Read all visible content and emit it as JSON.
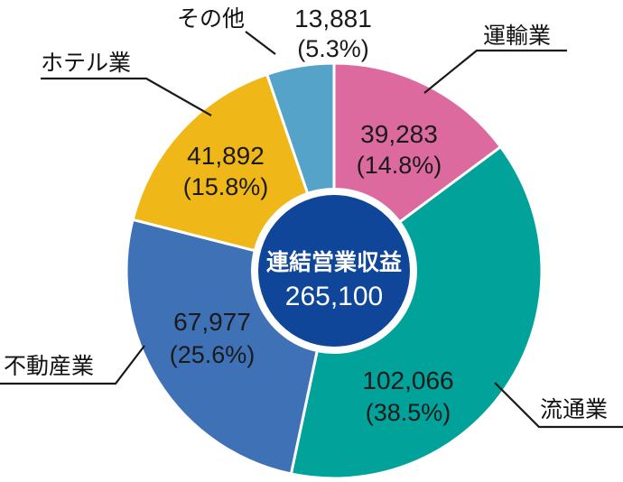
{
  "chart_data": {
    "type": "pie",
    "donut": true,
    "center": {
      "title": "連結営業収益",
      "value": "265,100"
    },
    "slices": [
      {
        "label": "運輸業",
        "value": 39283,
        "value_text": "39,283",
        "percent_text": "(14.8%)",
        "color": "#DD6A9F"
      },
      {
        "label": "流通業",
        "value": 102066,
        "value_text": "102,066",
        "percent_text": "(38.5%)",
        "color": "#00A29A"
      },
      {
        "label": "不動産業",
        "value": 67977,
        "value_text": "67,977",
        "percent_text": "(25.6%)",
        "color": "#3F71B6"
      },
      {
        "label": "ホテル業",
        "value": 41892,
        "value_text": "41,892",
        "percent_text": "(15.8%)",
        "color": "#EFB718"
      },
      {
        "label": "その他",
        "value": 13881,
        "value_text": "13,881",
        "percent_text": "(5.3%)",
        "color": "#55A3C8"
      }
    ],
    "colors": {
      "center_fill": "#0F4699",
      "center_ring": "#ffffff"
    }
  }
}
